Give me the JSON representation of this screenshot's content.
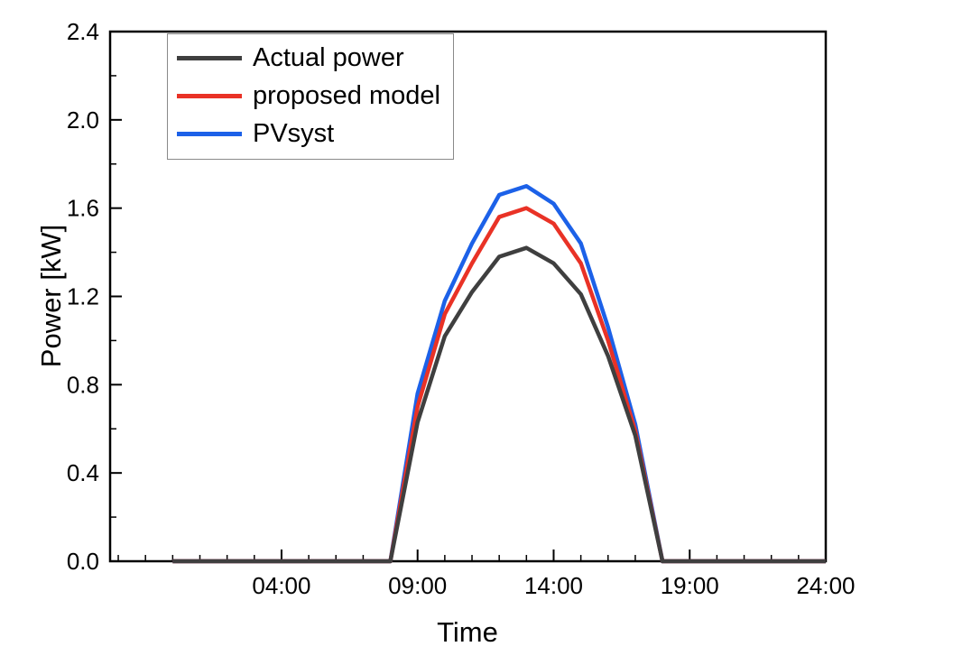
{
  "chart_data": {
    "type": "line",
    "title": "",
    "xlabel": "Time",
    "ylabel": "Power [kW]",
    "xlim": [
      -2.3,
      24
    ],
    "ylim": [
      0,
      2.4
    ],
    "x_minor_step": 1,
    "y_minor_step": 0.2,
    "x_ticks": [
      {
        "value": 4,
        "label": "04:00"
      },
      {
        "value": 9,
        "label": "09:00"
      },
      {
        "value": 14,
        "label": "14:00"
      },
      {
        "value": 19,
        "label": "19:00"
      },
      {
        "value": 24,
        "label": "24:00"
      }
    ],
    "y_ticks": [
      {
        "value": 0.0,
        "label": "0.0"
      },
      {
        "value": 0.4,
        "label": "0.4"
      },
      {
        "value": 0.8,
        "label": "0.8"
      },
      {
        "value": 1.2,
        "label": "1.2"
      },
      {
        "value": 1.6,
        "label": "1.6"
      },
      {
        "value": 2.0,
        "label": "2.0"
      },
      {
        "value": 2.4,
        "label": "2.4"
      }
    ],
    "legend_position": "top-left",
    "grid": false,
    "series": [
      {
        "name": "Actual power",
        "color": "#3f3f3f",
        "x": [
          0,
          1,
          2,
          3,
          4,
          5,
          6,
          7,
          8,
          9,
          10,
          11,
          12,
          13,
          14,
          15,
          16,
          17,
          18,
          19,
          20,
          21,
          22,
          23,
          24
        ],
        "y": [
          0,
          0,
          0,
          0,
          0,
          0,
          0,
          0,
          0,
          0.63,
          1.02,
          1.22,
          1.38,
          1.42,
          1.35,
          1.21,
          0.93,
          0.57,
          0,
          0,
          0,
          0,
          0,
          0,
          0
        ]
      },
      {
        "name": "proposed model",
        "color": "#e93226",
        "x": [
          0,
          1,
          2,
          3,
          4,
          5,
          6,
          7,
          8,
          9,
          10,
          11,
          12,
          13,
          14,
          15,
          16,
          17,
          18,
          19,
          20,
          21,
          22,
          23,
          24
        ],
        "y": [
          0,
          0,
          0,
          0,
          0,
          0,
          0,
          0,
          0,
          0.7,
          1.12,
          1.35,
          1.56,
          1.6,
          1.53,
          1.35,
          1.0,
          0.59,
          0,
          0,
          0,
          0,
          0,
          0,
          0
        ]
      },
      {
        "name": "PVsyst",
        "color": "#1c61e8",
        "x": [
          0,
          1,
          2,
          3,
          4,
          5,
          6,
          7,
          8,
          9,
          10,
          11,
          12,
          13,
          14,
          15,
          16,
          17,
          18,
          19,
          20,
          21,
          22,
          23,
          24
        ],
        "y": [
          0,
          0,
          0,
          0,
          0,
          0,
          0,
          0,
          0,
          0.76,
          1.18,
          1.44,
          1.66,
          1.7,
          1.62,
          1.44,
          1.06,
          0.62,
          0,
          0,
          0,
          0,
          0,
          0,
          0
        ]
      }
    ]
  }
}
